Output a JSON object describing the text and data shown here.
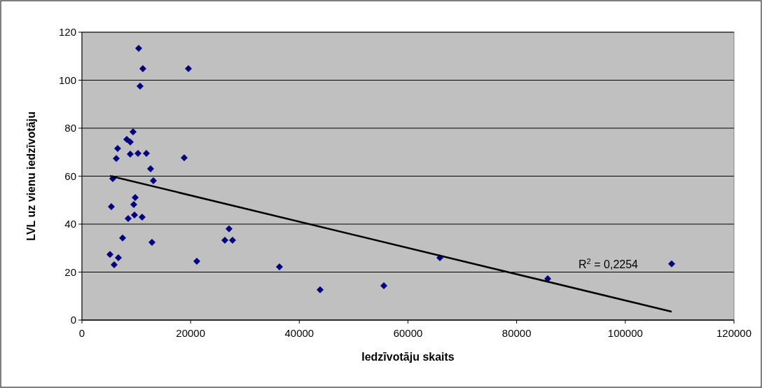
{
  "chart_data": {
    "type": "scatter",
    "xlabel": "Iedzīvotāju skaits",
    "ylabel": "LVL uz vienu iedzīvotāju",
    "xlim": [
      0,
      120000
    ],
    "xticks": [
      0,
      20000,
      40000,
      60000,
      80000,
      100000,
      120000
    ],
    "ylim": [
      0,
      120
    ],
    "yticks": [
      0,
      20,
      40,
      60,
      80,
      100,
      120
    ],
    "grid": "y",
    "series": [
      {
        "color": "#000080",
        "marker": "diamond",
        "x": [
          10440,
          11210,
          19590,
          10700,
          9410,
          8250,
          8890,
          6570,
          6320,
          8890,
          10310,
          11860,
          18820,
          12630,
          13150,
          5670,
          9800,
          9540,
          5410,
          8510,
          9670,
          11080,
          7480,
          12890,
          5160,
          6700,
          5930,
          21140,
          27070,
          26300,
          27710,
          36350,
          43830,
          55560,
          65870,
          85720,
          108530
        ],
        "values": [
          113.3,
          104.8,
          104.8,
          97.5,
          78.5,
          75.3,
          74.2,
          71.5,
          67.4,
          69.2,
          69.5,
          69.5,
          67.7,
          63.1,
          58.1,
          59.0,
          51.1,
          48.2,
          47.3,
          42.3,
          43.8,
          42.9,
          34.2,
          32.4,
          27.4,
          26.0,
          23.1,
          24.5,
          38.0,
          33.3,
          33.3,
          22.2,
          12.6,
          14.3,
          26.0,
          17.2,
          23.4
        ]
      },
      {
        "type": "line",
        "color": "#000000",
        "line_style": "solid",
        "x": [
          5160,
          108530
        ],
        "values": [
          60.1,
          3.5
        ]
      }
    ],
    "annotations": [
      "R$^{2}$ = 0,2254"
    ]
  }
}
